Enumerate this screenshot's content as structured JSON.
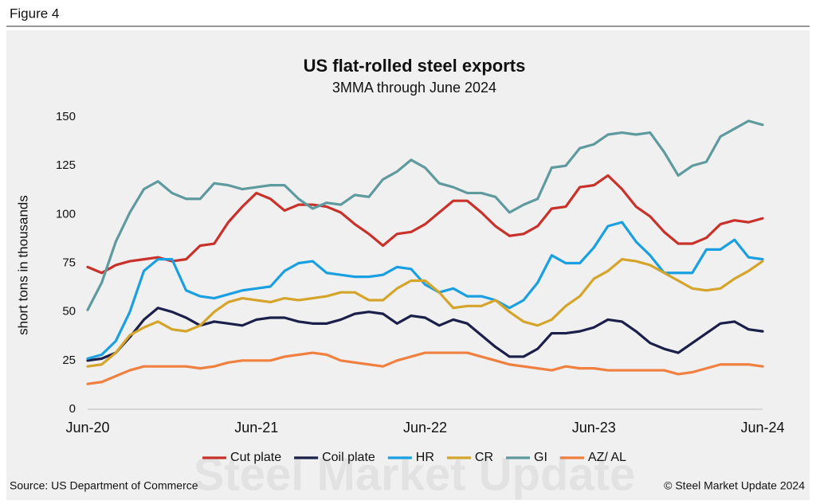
{
  "figure_label": "Figure 4",
  "chart_data": {
    "type": "line",
    "title": "US flat-rolled steel exports",
    "subtitle": "3MMA through June 2024",
    "watermark": "Steel Market Update",
    "y_label": "short tons in thousands",
    "categories": [
      "Jun-20",
      null,
      null,
      null,
      null,
      null,
      null,
      null,
      null,
      null,
      null,
      null,
      "Jun-21",
      null,
      null,
      null,
      null,
      null,
      null,
      null,
      null,
      null,
      null,
      null,
      "Jun-22",
      null,
      null,
      null,
      null,
      null,
      null,
      null,
      null,
      null,
      null,
      null,
      "Jun-23",
      null,
      null,
      null,
      null,
      null,
      null,
      null,
      null,
      null,
      null,
      null,
      "Jun-24"
    ],
    "ylim": [
      0,
      150
    ],
    "yticks": [
      0,
      25,
      50,
      75,
      100,
      125,
      150
    ],
    "grid": false,
    "legend": "bottom",
    "series": [
      {
        "name": "Cut plate",
        "color": "#c8322a",
        "values": [
          73,
          70,
          74,
          76,
          77,
          78,
          76,
          77,
          84,
          85,
          96,
          104,
          111,
          108,
          102,
          105,
          105,
          104,
          101,
          95,
          90,
          84,
          90,
          91,
          95,
          101,
          107,
          107,
          101,
          94,
          89,
          90,
          94,
          103,
          104,
          114,
          115,
          120,
          113,
          104,
          99,
          91,
          85,
          85,
          88,
          95,
          97,
          96,
          98
        ]
      },
      {
        "name": "Coil plate",
        "color": "#1b1f4a",
        "values": [
          25,
          26,
          29,
          37,
          46,
          52,
          50,
          47,
          43,
          45,
          44,
          43,
          46,
          47,
          47,
          45,
          44,
          44,
          46,
          49,
          50,
          49,
          44,
          48,
          47,
          43,
          46,
          44,
          38,
          32,
          27,
          27,
          31,
          39,
          39,
          40,
          42,
          46,
          45,
          40,
          34,
          31,
          29,
          34,
          39,
          44,
          45,
          41,
          40
        ]
      },
      {
        "name": "HR",
        "color": "#1aa0e0",
        "values": [
          26,
          28,
          35,
          50,
          71,
          77,
          77,
          61,
          58,
          57,
          59,
          61,
          62,
          63,
          71,
          75,
          76,
          70,
          69,
          68,
          68,
          69,
          73,
          72,
          64,
          60,
          62,
          58,
          58,
          56,
          52,
          56,
          65,
          79,
          75,
          75,
          83,
          94,
          96,
          86,
          79,
          70,
          70,
          70,
          82,
          82,
          87,
          78,
          77
        ]
      },
      {
        "name": "CR",
        "color": "#d4a52a",
        "values": [
          22,
          23,
          29,
          38,
          42,
          45,
          41,
          40,
          43,
          50,
          55,
          57,
          56,
          55,
          57,
          56,
          57,
          58,
          60,
          60,
          56,
          56,
          62,
          66,
          66,
          60,
          52,
          53,
          53,
          56,
          50,
          45,
          43,
          46,
          53,
          58,
          67,
          71,
          77,
          76,
          74,
          70,
          66,
          62,
          61,
          62,
          67,
          71,
          76
        ]
      },
      {
        "name": "GI",
        "color": "#5e9a9e",
        "values": [
          51,
          65,
          86,
          101,
          113,
          117,
          111,
          108,
          108,
          116,
          115,
          113,
          114,
          115,
          115,
          108,
          103,
          106,
          105,
          110,
          109,
          118,
          122,
          128,
          124,
          116,
          114,
          111,
          111,
          109,
          101,
          105,
          108,
          124,
          125,
          134,
          136,
          141,
          142,
          141,
          142,
          132,
          120,
          125,
          127,
          140,
          144,
          148,
          146
        ]
      },
      {
        "name": "AZ/ AL",
        "color": "#f08040",
        "values": [
          13,
          14,
          17,
          20,
          22,
          22,
          22,
          22,
          21,
          22,
          24,
          25,
          25,
          25,
          27,
          28,
          29,
          28,
          25,
          24,
          23,
          22,
          25,
          27,
          29,
          29,
          29,
          29,
          27,
          25,
          23,
          22,
          21,
          20,
          22,
          21,
          21,
          20,
          20,
          20,
          20,
          20,
          18,
          19,
          21,
          23,
          23,
          23,
          22
        ]
      }
    ]
  },
  "source": "Source: US Department of Commerce",
  "copyright": "© Steel Market Update 2024"
}
